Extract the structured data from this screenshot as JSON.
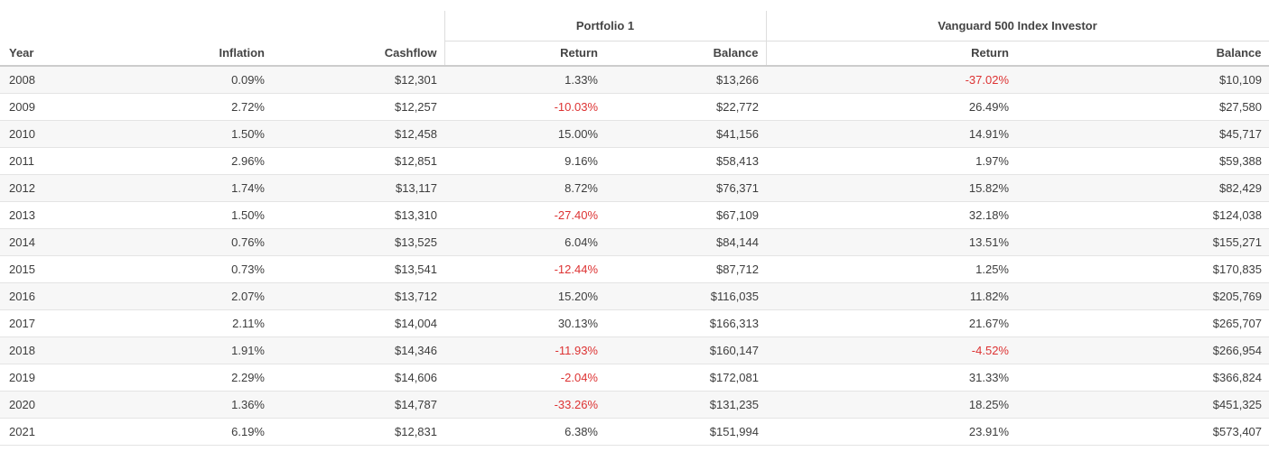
{
  "table": {
    "groups": [
      {
        "label": "Portfolio 1"
      },
      {
        "label": "Vanguard 500 Index Investor"
      }
    ],
    "columns": {
      "year": "Year",
      "inflation": "Inflation",
      "cashflow": "Cashflow",
      "p1_return": "Return",
      "p1_balance": "Balance",
      "v500_return": "Return",
      "v500_balance": "Balance"
    },
    "col_names": [
      "year",
      "inflation",
      "cashflow",
      "p1-return",
      "p1-balance",
      "v500-return",
      "v500-balance"
    ],
    "rows": [
      [
        "2008",
        "0.09%",
        "$12,301",
        "1.33%",
        "$13,266",
        "-37.02%",
        "$10,109"
      ],
      [
        "2009",
        "2.72%",
        "$12,257",
        "-10.03%",
        "$22,772",
        "26.49%",
        "$27,580"
      ],
      [
        "2010",
        "1.50%",
        "$12,458",
        "15.00%",
        "$41,156",
        "14.91%",
        "$45,717"
      ],
      [
        "2011",
        "2.96%",
        "$12,851",
        "9.16%",
        "$58,413",
        "1.97%",
        "$59,388"
      ],
      [
        "2012",
        "1.74%",
        "$13,117",
        "8.72%",
        "$76,371",
        "15.82%",
        "$82,429"
      ],
      [
        "2013",
        "1.50%",
        "$13,310",
        "-27.40%",
        "$67,109",
        "32.18%",
        "$124,038"
      ],
      [
        "2014",
        "0.76%",
        "$13,525",
        "6.04%",
        "$84,144",
        "13.51%",
        "$155,271"
      ],
      [
        "2015",
        "0.73%",
        "$13,541",
        "-12.44%",
        "$87,712",
        "1.25%",
        "$170,835"
      ],
      [
        "2016",
        "2.07%",
        "$13,712",
        "15.20%",
        "$116,035",
        "11.82%",
        "$205,769"
      ],
      [
        "2017",
        "2.11%",
        "$14,004",
        "30.13%",
        "$166,313",
        "21.67%",
        "$265,707"
      ],
      [
        "2018",
        "1.91%",
        "$14,346",
        "-11.93%",
        "$160,147",
        "-4.52%",
        "$266,954"
      ],
      [
        "2019",
        "2.29%",
        "$14,606",
        "-2.04%",
        "$172,081",
        "31.33%",
        "$366,824"
      ],
      [
        "2020",
        "1.36%",
        "$14,787",
        "-33.26%",
        "$131,235",
        "18.25%",
        "$451,325"
      ],
      [
        "2021",
        "6.19%",
        "$12,831",
        "6.38%",
        "$151,994",
        "23.91%",
        "$573,407"
      ]
    ],
    "colors": {
      "negative_text": "#dd3333",
      "positive_text": "#3d3d3d",
      "stripe_background": "#f7f7f7",
      "row_border": "#e4e4e4",
      "header_border": "#cccccc",
      "group_border": "#dddddd"
    }
  }
}
